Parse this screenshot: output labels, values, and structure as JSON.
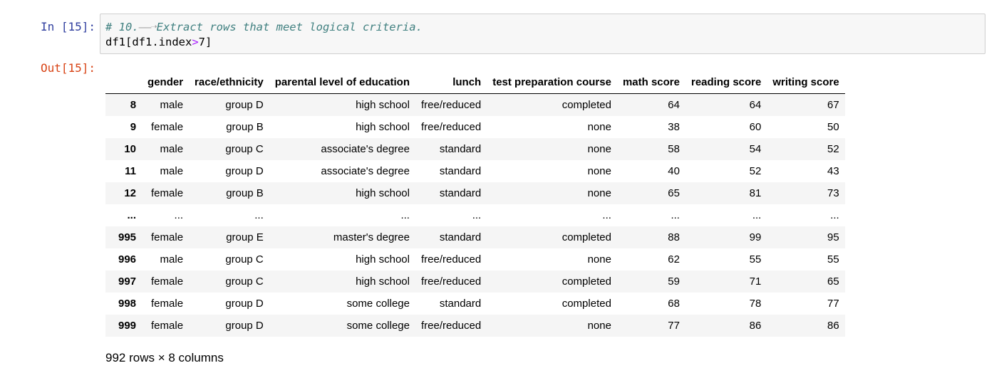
{
  "input_prompt": "In [15]:",
  "output_prompt": "Out[15]:",
  "code": {
    "comment": "# 10.",
    "comment_rest": "Extract rows that meet logical criteria.",
    "line2_a": "df1[df1.index",
    "line2_op": ">",
    "line2_b": "7]"
  },
  "table": {
    "columns": [
      "",
      "gender",
      "race/ethnicity",
      "parental level of education",
      "lunch",
      "test preparation course",
      "math score",
      "reading score",
      "writing score"
    ],
    "rows": [
      [
        "8",
        "male",
        "group D",
        "high school",
        "free/reduced",
        "completed",
        "64",
        "64",
        "67"
      ],
      [
        "9",
        "female",
        "group B",
        "high school",
        "free/reduced",
        "none",
        "38",
        "60",
        "50"
      ],
      [
        "10",
        "male",
        "group C",
        "associate's degree",
        "standard",
        "none",
        "58",
        "54",
        "52"
      ],
      [
        "11",
        "male",
        "group D",
        "associate's degree",
        "standard",
        "none",
        "40",
        "52",
        "43"
      ],
      [
        "12",
        "female",
        "group B",
        "high school",
        "standard",
        "none",
        "65",
        "81",
        "73"
      ],
      [
        "...",
        "...",
        "...",
        "...",
        "...",
        "...",
        "...",
        "...",
        "..."
      ],
      [
        "995",
        "female",
        "group E",
        "master's degree",
        "standard",
        "completed",
        "88",
        "99",
        "95"
      ],
      [
        "996",
        "male",
        "group C",
        "high school",
        "free/reduced",
        "none",
        "62",
        "55",
        "55"
      ],
      [
        "997",
        "female",
        "group C",
        "high school",
        "free/reduced",
        "completed",
        "59",
        "71",
        "65"
      ],
      [
        "998",
        "female",
        "group D",
        "some college",
        "standard",
        "completed",
        "68",
        "78",
        "77"
      ],
      [
        "999",
        "female",
        "group D",
        "some college",
        "free/reduced",
        "none",
        "77",
        "86",
        "86"
      ]
    ]
  },
  "dimensions": "992 rows × 8 columns",
  "colors": {
    "in_prompt": "#303f9f",
    "out_prompt": "#d84315",
    "comment": "#408080",
    "operator": "#aa22ff"
  }
}
